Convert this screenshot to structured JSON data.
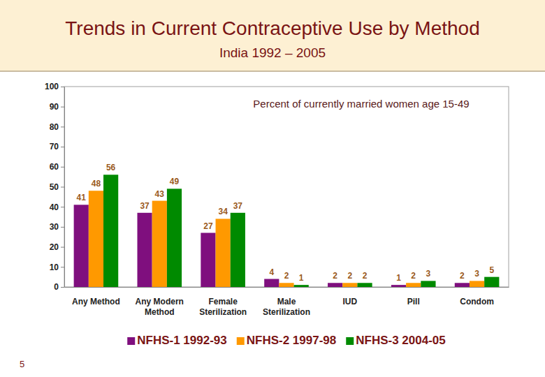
{
  "chart_data": {
    "type": "bar",
    "title": "Trends in Current Contraceptive Use by Method",
    "subtitle": "India 1992 – 2005",
    "annotation": "Percent of currently married women age 15-49",
    "categories": [
      "Any Method",
      "Any Modern Method",
      "Female Sterilization",
      "Male Sterilization",
      "IUD",
      "Pill",
      "Condom"
    ],
    "series": [
      {
        "name": "NFHS-1 1992-93",
        "color": "#7f0f7e",
        "values": [
          41,
          37,
          27,
          4,
          2,
          1,
          2
        ]
      },
      {
        "name": "NFHS-2 1997-98",
        "color": "#ff9900",
        "values": [
          48,
          43,
          34,
          2,
          2,
          2,
          3
        ]
      },
      {
        "name": "NFHS-3 2004-05",
        "color": "#008a00",
        "values": [
          56,
          49,
          37,
          1,
          2,
          3,
          5
        ]
      }
    ],
    "ylim": [
      0,
      100
    ],
    "yticks": [
      0,
      10,
      20,
      30,
      40,
      50,
      60,
      70,
      80,
      90,
      100
    ],
    "grid": false,
    "data_labels": true,
    "legend": "bottom"
  },
  "slide": {
    "page_number": "5"
  }
}
